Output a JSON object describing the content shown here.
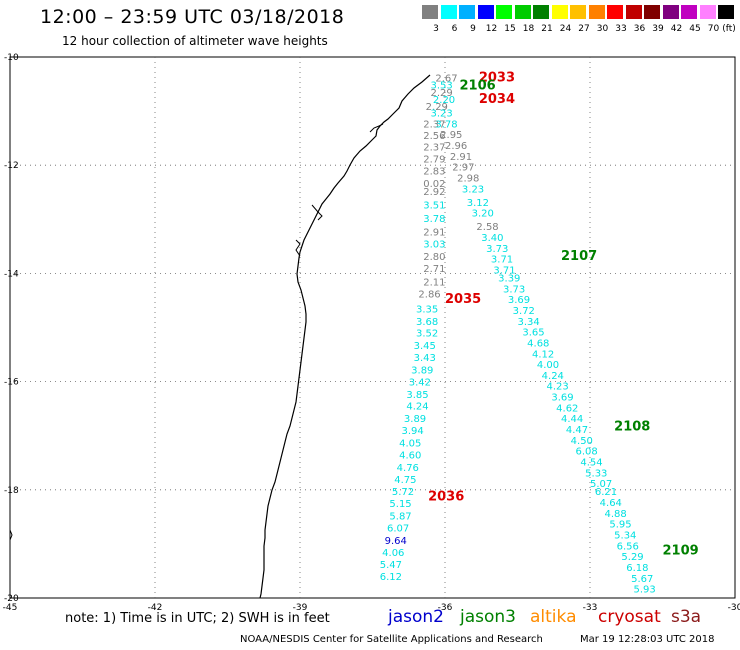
{
  "header": {
    "title": "12:00 – 23:59 UTC 03/18/2018",
    "subtitle": "12 hour collection of altimeter wave heights"
  },
  "colorbar": {
    "unit_label": "(ft)",
    "swatches": [
      {
        "color": "#808080",
        "label": "3"
      },
      {
        "color": "#00ffff",
        "label": "6"
      },
      {
        "color": "#00b0ff",
        "label": "9"
      },
      {
        "color": "#0000ff",
        "label": "12"
      },
      {
        "color": "#00ff00",
        "label": "15"
      },
      {
        "color": "#00cc00",
        "label": "18"
      },
      {
        "color": "#008000",
        "label": "21"
      },
      {
        "color": "#ffff00",
        "label": "24"
      },
      {
        "color": "#ffc000",
        "label": "27"
      },
      {
        "color": "#ff8000",
        "label": "30"
      },
      {
        "color": "#ff0000",
        "label": "33"
      },
      {
        "color": "#c00000",
        "label": "36"
      },
      {
        "color": "#800000",
        "label": "39"
      },
      {
        "color": "#800080",
        "label": "42"
      },
      {
        "color": "#c000c0",
        "label": "45"
      },
      {
        "color": "#ff80ff",
        "label": "70"
      },
      {
        "color": "#000000",
        "label": ""
      }
    ]
  },
  "map": {
    "lon_range": [
      -45,
      -30
    ],
    "lat_range": [
      -20,
      -10
    ],
    "lon_ticks": [
      "-45",
      "-42",
      "-39",
      "-36",
      "-33",
      "-30"
    ],
    "lat_ticks": [
      "-10",
      "-12",
      "-14",
      "-16",
      "-18",
      "-20"
    ],
    "colors": {
      "grey": "#808080",
      "cyan": "#00e0e0",
      "blue": "#0000cc",
      "red": "#dd0000",
      "green": "#008000"
    },
    "passes": [
      {
        "label": "2033",
        "color": "red",
        "lon": -35.3,
        "lat": -10.45
      },
      {
        "label": "2106",
        "color": "green",
        "lon": -35.7,
        "lat": -10.6
      },
      {
        "label": "2034",
        "color": "red",
        "lon": -35.3,
        "lat": -10.85
      },
      {
        "label": "2107",
        "color": "green",
        "lon": -33.6,
        "lat": -13.75
      },
      {
        "label": "2035",
        "color": "red",
        "lon": -36.0,
        "lat": -14.55
      },
      {
        "label": "2108",
        "color": "green",
        "lon": -32.5,
        "lat": -16.9
      },
      {
        "label": "2036",
        "color": "red",
        "lon": -36.35,
        "lat": -18.2
      },
      {
        "label": "2109",
        "color": "green",
        "lon": -31.5,
        "lat": -19.2
      }
    ],
    "observations": [
      {
        "v": "2.67",
        "c": "grey",
        "lon": -36.2,
        "lat": -10.45
      },
      {
        "v": "3.53",
        "c": "cyan",
        "lon": -36.3,
        "lat": -10.58
      },
      {
        "v": "2.29",
        "c": "grey",
        "lon": -36.3,
        "lat": -10.72
      },
      {
        "v": "2.20",
        "c": "cyan",
        "lon": -36.25,
        "lat": -10.85
      },
      {
        "v": "2.29",
        "c": "grey",
        "lon": -36.4,
        "lat": -10.98
      },
      {
        "v": "3.23",
        "c": "cyan",
        "lon": -36.3,
        "lat": -11.1
      },
      {
        "v": "2.37",
        "c": "grey",
        "lon": -36.45,
        "lat": -11.3
      },
      {
        "v": "3.78",
        "c": "cyan",
        "lon": -36.2,
        "lat": -11.3
      },
      {
        "v": "2.56",
        "c": "grey",
        "lon": -36.45,
        "lat": -11.52
      },
      {
        "v": "2.95",
        "c": "grey",
        "lon": -36.1,
        "lat": -11.5
      },
      {
        "v": "2.37",
        "c": "grey",
        "lon": -36.45,
        "lat": -11.73
      },
      {
        "v": "2.96",
        "c": "grey",
        "lon": -36.0,
        "lat": -11.7
      },
      {
        "v": "2.79",
        "c": "grey",
        "lon": -36.45,
        "lat": -11.95
      },
      {
        "v": "2.91",
        "c": "grey",
        "lon": -35.9,
        "lat": -11.9
      },
      {
        "v": "2.83",
        "c": "grey",
        "lon": -36.45,
        "lat": -12.17
      },
      {
        "v": "2.97",
        "c": "grey",
        "lon": -35.85,
        "lat": -12.1
      },
      {
        "v": "0.02",
        "c": "grey",
        "lon": -36.45,
        "lat": -12.4
      },
      {
        "v": "2.98",
        "c": "grey",
        "lon": -35.75,
        "lat": -12.3
      },
      {
        "v": "2.92",
        "c": "grey",
        "lon": -36.45,
        "lat": -12.55
      },
      {
        "v": "3.23",
        "c": "cyan",
        "lon": -35.65,
        "lat": -12.5
      },
      {
        "v": "3.51",
        "c": "cyan",
        "lon": -36.45,
        "lat": -12.8
      },
      {
        "v": "3.12",
        "c": "cyan",
        "lon": -35.55,
        "lat": -12.75
      },
      {
        "v": "3.78",
        "c": "cyan",
        "lon": -36.45,
        "lat": -13.05
      },
      {
        "v": "3.20",
        "c": "cyan",
        "lon": -35.45,
        "lat": -12.95
      },
      {
        "v": "2.91",
        "c": "grey",
        "lon": -36.45,
        "lat": -13.3
      },
      {
        "v": "2.58",
        "c": "grey",
        "lon": -35.35,
        "lat": -13.2
      },
      {
        "v": "3.03",
        "c": "cyan",
        "lon": -36.45,
        "lat": -13.52
      },
      {
        "v": "3.40",
        "c": "cyan",
        "lon": -35.25,
        "lat": -13.4
      },
      {
        "v": "2.80",
        "c": "grey",
        "lon": -36.45,
        "lat": -13.75
      },
      {
        "v": "3.73",
        "c": "cyan",
        "lon": -35.15,
        "lat": -13.6
      },
      {
        "v": "2.71",
        "c": "grey",
        "lon": -36.45,
        "lat": -13.97
      },
      {
        "v": "3.71",
        "c": "cyan",
        "lon": -35.05,
        "lat": -13.8
      },
      {
        "v": "3.71",
        "c": "cyan",
        "lon": -35.0,
        "lat": -14.0
      },
      {
        "v": "2.11",
        "c": "grey",
        "lon": -36.45,
        "lat": -14.22
      },
      {
        "v": "3.39",
        "c": "cyan",
        "lon": -34.9,
        "lat": -14.15
      },
      {
        "v": "3.73",
        "c": "cyan",
        "lon": -34.8,
        "lat": -14.35
      },
      {
        "v": "2.86",
        "c": "grey",
        "lon": -36.55,
        "lat": -14.45
      },
      {
        "v": "3.69",
        "c": "cyan",
        "lon": -34.7,
        "lat": -14.55
      },
      {
        "v": "3.35",
        "c": "cyan",
        "lon": -36.6,
        "lat": -14.72
      },
      {
        "v": "3.72",
        "c": "cyan",
        "lon": -34.6,
        "lat": -14.75
      },
      {
        "v": "3.68",
        "c": "cyan",
        "lon": -36.6,
        "lat": -14.95
      },
      {
        "v": "3.34",
        "c": "cyan",
        "lon": -34.5,
        "lat": -14.95
      },
      {
        "v": "3.52",
        "c": "cyan",
        "lon": -36.6,
        "lat": -15.17
      },
      {
        "v": "3.65",
        "c": "cyan",
        "lon": -34.4,
        "lat": -15.15
      },
      {
        "v": "3.45",
        "c": "cyan",
        "lon": -36.65,
        "lat": -15.4
      },
      {
        "v": "4.68",
        "c": "cyan",
        "lon": -34.3,
        "lat": -15.35
      },
      {
        "v": "3.43",
        "c": "cyan",
        "lon": -36.65,
        "lat": -15.62
      },
      {
        "v": "4.12",
        "c": "cyan",
        "lon": -34.2,
        "lat": -15.55
      },
      {
        "v": "3.89",
        "c": "cyan",
        "lon": -36.7,
        "lat": -15.85
      },
      {
        "v": "4.00",
        "c": "cyan",
        "lon": -34.1,
        "lat": -15.75
      },
      {
        "v": "4.24",
        "c": "cyan",
        "lon": -34.0,
        "lat": -15.95
      },
      {
        "v": "3.42",
        "c": "cyan",
        "lon": -36.75,
        "lat": -16.07
      },
      {
        "v": "4.23",
        "c": "cyan",
        "lon": -33.9,
        "lat": -16.15
      },
      {
        "v": "3.85",
        "c": "cyan",
        "lon": -36.8,
        "lat": -16.3
      },
      {
        "v": "3.69",
        "c": "cyan",
        "lon": -33.8,
        "lat": -16.35
      },
      {
        "v": "4.24",
        "c": "cyan",
        "lon": -36.8,
        "lat": -16.52
      },
      {
        "v": "4.62",
        "c": "cyan",
        "lon": -33.7,
        "lat": -16.55
      },
      {
        "v": "3.89",
        "c": "cyan",
        "lon": -36.85,
        "lat": -16.75
      },
      {
        "v": "4.44",
        "c": "cyan",
        "lon": -33.6,
        "lat": -16.75
      },
      {
        "v": "3.94",
        "c": "cyan",
        "lon": -36.9,
        "lat": -16.97
      },
      {
        "v": "4.47",
        "c": "cyan",
        "lon": -33.5,
        "lat": -16.95
      },
      {
        "v": "4.05",
        "c": "cyan",
        "lon": -36.95,
        "lat": -17.2
      },
      {
        "v": "4.50",
        "c": "cyan",
        "lon": -33.4,
        "lat": -17.15
      },
      {
        "v": "4.60",
        "c": "cyan",
        "lon": -36.95,
        "lat": -17.42
      },
      {
        "v": "6.08",
        "c": "cyan",
        "lon": -33.3,
        "lat": -17.35
      },
      {
        "v": "4.54",
        "c": "cyan",
        "lon": -33.2,
        "lat": -17.55
      },
      {
        "v": "4.76",
        "c": "cyan",
        "lon": -37.0,
        "lat": -17.65
      },
      {
        "v": "5.33",
        "c": "cyan",
        "lon": -33.1,
        "lat": -17.75
      },
      {
        "v": "4.75",
        "c": "cyan",
        "lon": -37.05,
        "lat": -17.87
      },
      {
        "v": "5.07",
        "c": "cyan",
        "lon": -33.0,
        "lat": -17.95
      },
      {
        "v": "5.72",
        "c": "cyan",
        "lon": -37.1,
        "lat": -18.1
      },
      {
        "v": "6.21",
        "c": "cyan",
        "lon": -32.9,
        "lat": -18.1
      },
      {
        "v": "4.64",
        "c": "cyan",
        "lon": -32.8,
        "lat": -18.3
      },
      {
        "v": "5.15",
        "c": "cyan",
        "lon": -37.15,
        "lat": -18.32
      },
      {
        "v": "4.88",
        "c": "cyan",
        "lon": -32.7,
        "lat": -18.5
      },
      {
        "v": "5.87",
        "c": "cyan",
        "lon": -37.15,
        "lat": -18.55
      },
      {
        "v": "5.95",
        "c": "cyan",
        "lon": -32.6,
        "lat": -18.7
      },
      {
        "v": "6.07",
        "c": "cyan",
        "lon": -37.2,
        "lat": -18.77
      },
      {
        "v": "5.34",
        "c": "cyan",
        "lon": -32.5,
        "lat": -18.9
      },
      {
        "v": "9.64",
        "c": "blue",
        "lon": -37.25,
        "lat": -19.0
      },
      {
        "v": "6.56",
        "c": "cyan",
        "lon": -32.45,
        "lat": -19.1
      },
      {
        "v": "4.06",
        "c": "cyan",
        "lon": -37.3,
        "lat": -19.22
      },
      {
        "v": "5.29",
        "c": "cyan",
        "lon": -32.35,
        "lat": -19.3
      },
      {
        "v": "5.47",
        "c": "cyan",
        "lon": -37.35,
        "lat": -19.45
      },
      {
        "v": "6.18",
        "c": "cyan",
        "lon": -32.25,
        "lat": -19.5
      },
      {
        "v": "6.12",
        "c": "cyan",
        "lon": -37.35,
        "lat": -19.67
      },
      {
        "v": "5.67",
        "c": "cyan",
        "lon": -32.15,
        "lat": -19.7
      },
      {
        "v": "5.93",
        "c": "cyan",
        "lon": -32.1,
        "lat": -19.9
      }
    ]
  },
  "footer": {
    "note": "note: 1) Time is in UTC; 2) SWH is in feet",
    "missions": [
      {
        "name": "jason2",
        "color": "#0000cc"
      },
      {
        "name": "jason3",
        "color": "#008000"
      },
      {
        "name": "altika",
        "color": "#ff8c00"
      },
      {
        "name": "cryosat",
        "color": "#cc0000"
      },
      {
        "name": "s3a",
        "color": "#8b1a1a"
      }
    ],
    "credit": "NOAA/NESDIS Center for Satellite Applications and Research",
    "timestamp": "Mar 19 12:28:03 UTC 2018"
  }
}
